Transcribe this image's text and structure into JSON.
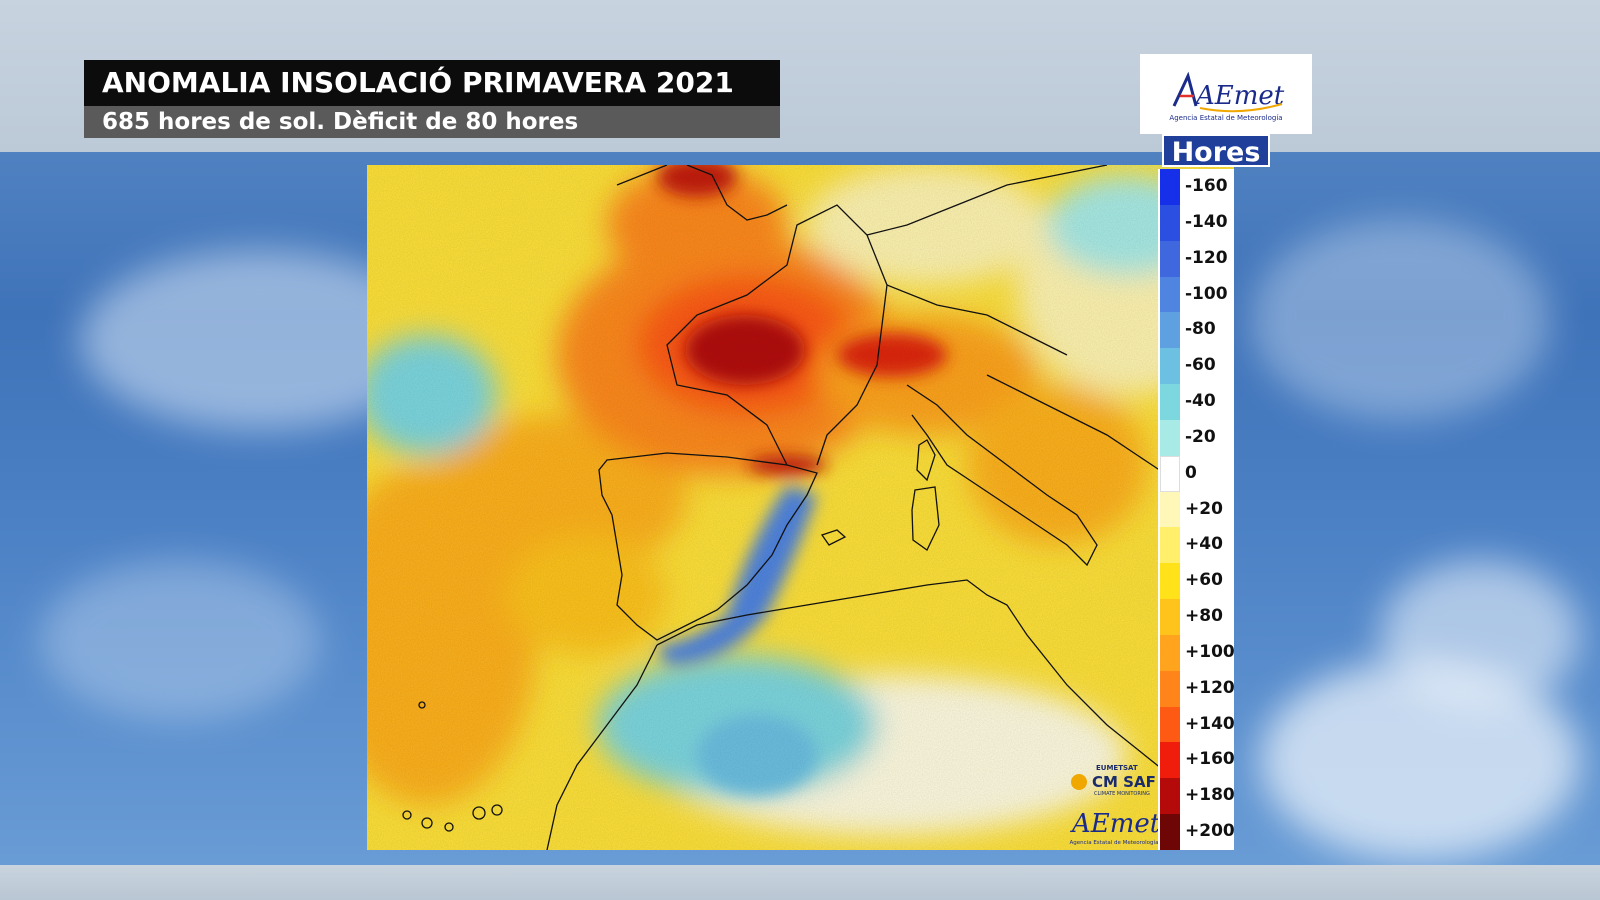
{
  "header": {
    "title": "ANOMALIA INSOLACIÓ PRIMAVERA 2021",
    "subtitle": "685 hores de sol. Dèficit de 80 hores"
  },
  "logo": {
    "text": "AEmet",
    "caption": "Agencia Estatal de Meteorología"
  },
  "legend": {
    "title": "Hores",
    "items": [
      {
        "label": "-160",
        "color": "#1530e8"
      },
      {
        "label": "-140",
        "color": "#2b4fe0"
      },
      {
        "label": "-120",
        "color": "#3f68df"
      },
      {
        "label": "-100",
        "color": "#4f84e0"
      },
      {
        "label": "-80",
        "color": "#5fa0e0"
      },
      {
        "label": "-60",
        "color": "#6cc0e2"
      },
      {
        "label": "-40",
        "color": "#7dd7df"
      },
      {
        "label": "-20",
        "color": "#a8ebe6"
      },
      {
        "label": "0",
        "color": "#ffffff"
      },
      {
        "label": "+20",
        "color": "#fff7b8"
      },
      {
        "label": "+40",
        "color": "#ffef6a"
      },
      {
        "label": "+60",
        "color": "#ffe21a"
      },
      {
        "label": "+80",
        "color": "#ffc41c"
      },
      {
        "label": "+100",
        "color": "#ffa41c"
      },
      {
        "label": "+120",
        "color": "#ff841a"
      },
      {
        "label": "+140",
        "color": "#ff5a14"
      },
      {
        "label": "+160",
        "color": "#f01c0c"
      },
      {
        "label": "+180",
        "color": "#b40a0a"
      },
      {
        "label": "+200",
        "color": "#6e0606"
      }
    ]
  },
  "watermarks": {
    "cmsaf_top": "EUMETSAT",
    "cmsaf_main": "CM SAF",
    "cmsaf_sub": "CLIMATE MONITORING",
    "aemet_main": "AEmet",
    "aemet_sub": "Agencia Estatal de Meteorología"
  },
  "colors": {
    "title_bg": "#0c0c0c",
    "subtitle_bg": "#5a5a5a",
    "legend_title_bg": "#1f3f9a",
    "coastline": "#111111"
  }
}
